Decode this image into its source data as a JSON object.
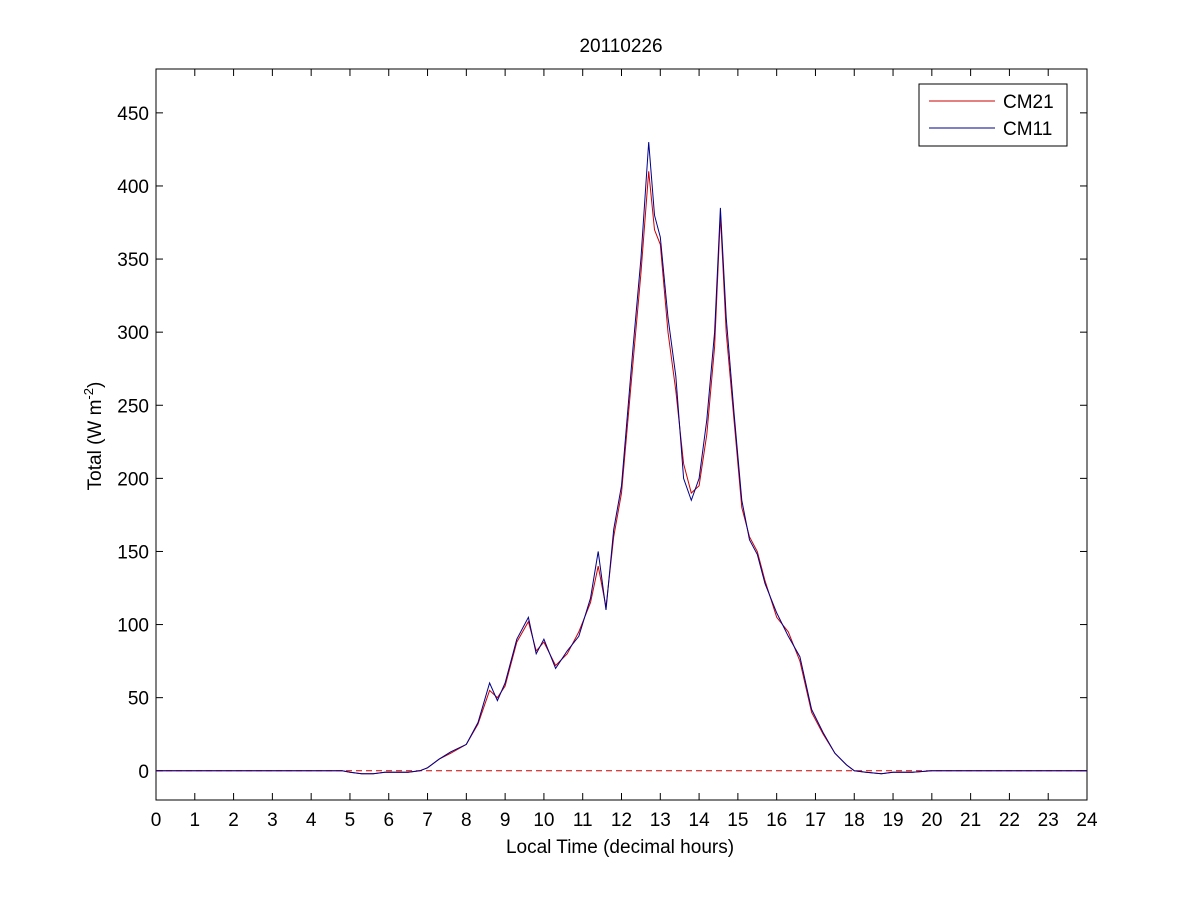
{
  "chart_data": {
    "type": "line",
    "title": "20110226",
    "xlabel": "Local Time (decimal hours)",
    "ylabel": {
      "main": "Total (W m",
      "superscript": "-2",
      "close": ")"
    },
    "xlim": [
      0,
      24
    ],
    "ylim": [
      -20,
      480
    ],
    "xticks": [
      "0",
      "1",
      "2",
      "3",
      "4",
      "5",
      "6",
      "7",
      "8",
      "9",
      "10",
      "11",
      "12",
      "13",
      "14",
      "15",
      "16",
      "17",
      "18",
      "19",
      "20",
      "21",
      "22",
      "23",
      "24"
    ],
    "yticks": [
      "0",
      "50",
      "100",
      "150",
      "200",
      "250",
      "300",
      "350",
      "400",
      "450"
    ],
    "grid": false,
    "legend_position": "top-right",
    "reference_line": {
      "y": 0,
      "style": "dashed",
      "color": "#cc0000"
    },
    "series": [
      {
        "name": "CM21",
        "color": "#cc0000",
        "x": [
          0,
          4.8,
          5.0,
          5.3,
          5.6,
          5.9,
          6.2,
          6.5,
          6.8,
          7.0,
          7.3,
          7.6,
          8.0,
          8.3,
          8.6,
          8.8,
          9.0,
          9.3,
          9.6,
          9.8,
          10.0,
          10.3,
          10.6,
          10.9,
          11.2,
          11.4,
          11.6,
          11.8,
          12.0,
          12.3,
          12.5,
          12.7,
          12.85,
          13.0,
          13.2,
          13.4,
          13.6,
          13.8,
          14.0,
          14.2,
          14.4,
          14.55,
          14.7,
          14.9,
          15.1,
          15.3,
          15.5,
          15.7,
          16.0,
          16.3,
          16.6,
          16.9,
          17.2,
          17.5,
          17.8,
          18.0,
          18.3,
          18.7,
          19.0,
          19.5,
          20.0,
          24.0
        ],
        "y": [
          0,
          0,
          -1,
          -2,
          -2,
          -1,
          -1,
          -1,
          0,
          2,
          8,
          12,
          18,
          32,
          55,
          50,
          58,
          88,
          102,
          82,
          88,
          72,
          80,
          95,
          115,
          140,
          112,
          160,
          190,
          280,
          340,
          410,
          370,
          360,
          300,
          260,
          210,
          190,
          195,
          230,
          290,
          380,
          300,
          240,
          180,
          160,
          150,
          130,
          105,
          95,
          75,
          40,
          25,
          12,
          4,
          0,
          -1,
          -2,
          -1,
          -1,
          0,
          0
        ]
      },
      {
        "name": "CM11",
        "color": "#00008b",
        "x": [
          0,
          4.8,
          5.0,
          5.3,
          5.6,
          5.9,
          6.2,
          6.5,
          6.8,
          7.0,
          7.3,
          7.6,
          8.0,
          8.3,
          8.6,
          8.8,
          9.0,
          9.3,
          9.6,
          9.8,
          10.0,
          10.3,
          10.6,
          10.9,
          11.2,
          11.4,
          11.6,
          11.8,
          12.0,
          12.3,
          12.5,
          12.7,
          12.85,
          13.0,
          13.2,
          13.4,
          13.6,
          13.8,
          14.0,
          14.2,
          14.4,
          14.55,
          14.7,
          14.9,
          15.1,
          15.3,
          15.5,
          15.7,
          16.0,
          16.3,
          16.6,
          16.9,
          17.2,
          17.5,
          17.8,
          18.0,
          18.3,
          18.7,
          19.0,
          19.5,
          20.0,
          24.0
        ],
        "y": [
          0,
          0,
          -1,
          -2,
          -2,
          -1,
          -1,
          -1,
          0,
          2,
          8,
          13,
          18,
          33,
          60,
          48,
          60,
          90,
          105,
          80,
          90,
          70,
          82,
          92,
          118,
          150,
          110,
          165,
          195,
          290,
          350,
          430,
          380,
          365,
          310,
          270,
          200,
          185,
          200,
          240,
          300,
          385,
          310,
          245,
          185,
          158,
          148,
          128,
          108,
          92,
          78,
          42,
          26,
          12,
          4,
          0,
          -1,
          -2,
          -1,
          -1,
          0,
          0
        ]
      }
    ]
  }
}
